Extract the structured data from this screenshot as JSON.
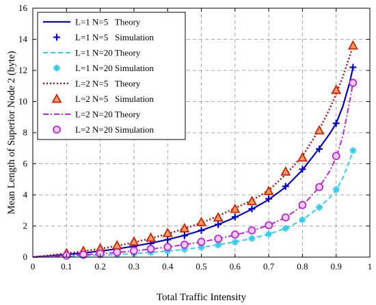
{
  "chart_data": {
    "type": "line",
    "title": "",
    "xlabel": "Total Traffic Intensity",
    "ylabel": "Mean Length of Superior Node 2 (byte)",
    "xlim": [
      0,
      1
    ],
    "ylim": [
      0,
      16
    ],
    "xticks": [
      "0",
      "0.1",
      "0.2",
      "0.3",
      "0.4",
      "0.5",
      "0.6",
      "0.7",
      "0.8",
      "0.9",
      "1"
    ],
    "yticks": [
      "0",
      "2",
      "4",
      "6",
      "8",
      "10",
      "12",
      "14",
      "16"
    ],
    "grid": true,
    "legend_position": "top-left",
    "series": [
      {
        "name": "L=1 N=5   Theory",
        "kind": "theory",
        "color": "#0000cc",
        "dash": "solid",
        "width": 2.2,
        "x": [
          0,
          0.05,
          0.1,
          0.15,
          0.2,
          0.25,
          0.3,
          0.35,
          0.4,
          0.45,
          0.5,
          0.55,
          0.6,
          0.65,
          0.7,
          0.75,
          0.8,
          0.85,
          0.88,
          0.9,
          0.92,
          0.94,
          0.95
        ],
        "y": [
          0,
          0.08,
          0.17,
          0.27,
          0.39,
          0.53,
          0.7,
          0.9,
          1.13,
          1.4,
          1.72,
          2.1,
          2.55,
          3.08,
          3.7,
          4.5,
          5.6,
          7.0,
          7.9,
          8.6,
          9.7,
          11.2,
          12.2
        ]
      },
      {
        "name": "L=1 N=5   Simulation",
        "kind": "plus",
        "color": "#0000cc",
        "x": [
          0.1,
          0.15,
          0.2,
          0.25,
          0.3,
          0.35,
          0.4,
          0.45,
          0.5,
          0.55,
          0.6,
          0.65,
          0.7,
          0.75,
          0.8,
          0.85,
          0.9,
          0.95
        ],
        "y": [
          0.16,
          0.25,
          0.37,
          0.5,
          0.68,
          0.88,
          1.12,
          1.38,
          1.72,
          2.1,
          2.58,
          3.1,
          3.75,
          4.55,
          5.65,
          6.95,
          8.6,
          12.2
        ]
      },
      {
        "name": "L=1 N=20 Theory",
        "kind": "theory",
        "color": "#33ccee",
        "dash": "7,4",
        "width": 2,
        "x": [
          0,
          0.05,
          0.1,
          0.15,
          0.2,
          0.25,
          0.3,
          0.35,
          0.4,
          0.45,
          0.5,
          0.55,
          0.6,
          0.65,
          0.7,
          0.75,
          0.8,
          0.85,
          0.88,
          0.9,
          0.92,
          0.94,
          0.95
        ],
        "y": [
          0,
          0.02,
          0.05,
          0.08,
          0.12,
          0.17,
          0.23,
          0.3,
          0.39,
          0.5,
          0.63,
          0.79,
          0.98,
          1.2,
          1.48,
          1.85,
          2.4,
          3.2,
          3.8,
          4.3,
          5.1,
          6.2,
          6.85
        ]
      },
      {
        "name": "L=1 N=20 Simulation",
        "kind": "asterisk",
        "color": "#33ccee",
        "x": [
          0.1,
          0.15,
          0.2,
          0.25,
          0.3,
          0.35,
          0.4,
          0.45,
          0.5,
          0.55,
          0.6,
          0.65,
          0.7,
          0.75,
          0.8,
          0.85,
          0.9,
          0.95
        ],
        "y": [
          0.05,
          0.08,
          0.12,
          0.17,
          0.23,
          0.3,
          0.39,
          0.5,
          0.63,
          0.78,
          0.97,
          1.2,
          1.48,
          1.85,
          2.4,
          3.2,
          4.35,
          6.85
        ]
      },
      {
        "name": "L=2 N=5   Theory",
        "kind": "theory",
        "color": "#aa1111",
        "dash": "2,3",
        "width": 2.6,
        "x": [
          0,
          0.05,
          0.1,
          0.15,
          0.2,
          0.25,
          0.3,
          0.35,
          0.4,
          0.45,
          0.5,
          0.55,
          0.6,
          0.65,
          0.7,
          0.75,
          0.8,
          0.85,
          0.88,
          0.9,
          0.92,
          0.94,
          0.95
        ],
        "y": [
          0,
          0.12,
          0.25,
          0.38,
          0.54,
          0.72,
          0.95,
          1.2,
          1.5,
          1.83,
          2.2,
          2.65,
          3.15,
          3.65,
          4.3,
          5.3,
          6.5,
          8.2,
          9.5,
          10.5,
          11.6,
          12.9,
          13.6
        ]
      },
      {
        "name": "L=2 N=5   Simulation",
        "kind": "triangle",
        "color": "#cc2200",
        "fill": "#ff9966",
        "x": [
          0.1,
          0.15,
          0.2,
          0.25,
          0.3,
          0.35,
          0.4,
          0.45,
          0.5,
          0.55,
          0.6,
          0.65,
          0.7,
          0.75,
          0.8,
          0.85,
          0.9,
          0.95
        ],
        "y": [
          0.26,
          0.4,
          0.56,
          0.76,
          1.0,
          1.25,
          1.55,
          1.85,
          2.25,
          2.55,
          3.1,
          3.6,
          4.25,
          5.5,
          6.4,
          8.15,
          10.75,
          13.6
        ]
      },
      {
        "name": "L=2 N=20 Theory",
        "kind": "theory",
        "color": "#bb22dd",
        "dash": "8,3,2,3",
        "width": 2,
        "x": [
          0,
          0.05,
          0.1,
          0.15,
          0.2,
          0.25,
          0.3,
          0.35,
          0.4,
          0.45,
          0.5,
          0.55,
          0.6,
          0.65,
          0.7,
          0.75,
          0.8,
          0.85,
          0.88,
          0.9,
          0.92,
          0.94,
          0.95
        ],
        "y": [
          0,
          0.04,
          0.09,
          0.15,
          0.22,
          0.3,
          0.4,
          0.52,
          0.65,
          0.8,
          0.98,
          1.18,
          1.42,
          1.7,
          2.05,
          2.55,
          3.3,
          4.5,
          5.5,
          6.4,
          7.8,
          10.0,
          11.2
        ]
      },
      {
        "name": "L=2 N=20 Simulation",
        "kind": "circle",
        "color": "#bb22dd",
        "fill": "#ffccff",
        "x": [
          0.1,
          0.15,
          0.2,
          0.25,
          0.3,
          0.35,
          0.4,
          0.45,
          0.5,
          0.55,
          0.6,
          0.65,
          0.7,
          0.75,
          0.8,
          0.85,
          0.9,
          0.95
        ],
        "y": [
          0.1,
          0.16,
          0.23,
          0.31,
          0.41,
          0.53,
          0.65,
          0.8,
          0.98,
          1.18,
          1.45,
          1.72,
          2.05,
          2.55,
          3.35,
          4.5,
          6.5,
          11.2
        ]
      }
    ]
  }
}
